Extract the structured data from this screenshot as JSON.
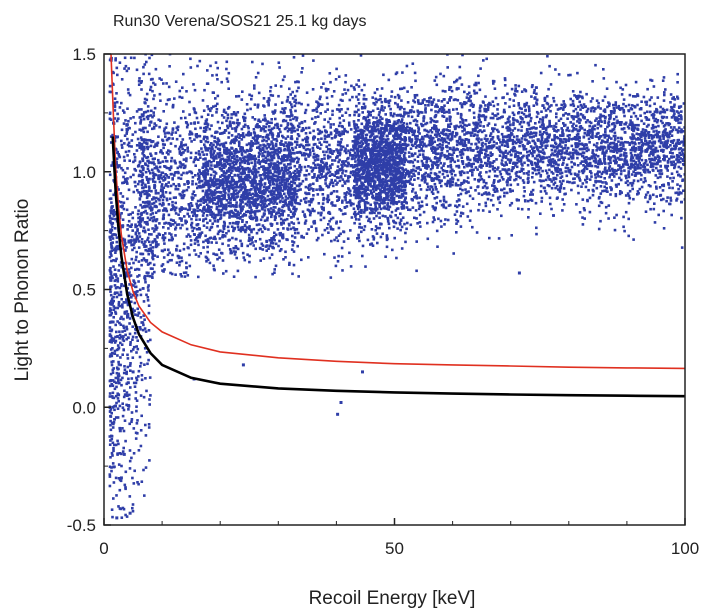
{
  "chart_data": {
    "type": "scatter",
    "title": "Run30 Verena/SOS21 25.1 kg days",
    "xlabel": "Recoil Energy [keV]",
    "ylabel": "Light to Phonon Ratio",
    "xlim": [
      0,
      100
    ],
    "ylim": [
      -0.5,
      1.5
    ],
    "x_ticks": [
      0,
      50,
      100
    ],
    "x_tick_labels": [
      "0",
      "50",
      "100"
    ],
    "y_ticks": [
      -0.5,
      0.0,
      0.5,
      1.0,
      1.5
    ],
    "y_tick_labels": [
      "-0.5",
      "0.0",
      "0.5",
      "1.0",
      "1.5"
    ],
    "grid": false,
    "legend": "none",
    "series": [
      {
        "kind": "points",
        "color": "#2f3ea8",
        "description_of_distribution": "dense band of events near light ratio 1.0 across 0-100 keV, widening toward low energy; low-energy tail descending below 0",
        "points": [
          {
            "x": 71.5,
            "y": 0.57
          },
          {
            "x": 40.2,
            "y": -0.03
          },
          {
            "x": 40.8,
            "y": 0.02
          },
          {
            "x": 44.5,
            "y": 0.15
          },
          {
            "x": 24.0,
            "y": 0.18
          },
          {
            "x": 15.5,
            "y": 0.12
          },
          {
            "x": 2.2,
            "y": -0.47
          },
          {
            "x": 4.5,
            "y": -0.45
          },
          {
            "x": 3.0,
            "y": -0.3
          },
          {
            "x": 3.5,
            "y": -0.2
          },
          {
            "x": 2.8,
            "y": -0.1
          },
          {
            "x": 4.0,
            "y": 0.05
          },
          {
            "x": 5.0,
            "y": 0.15
          },
          {
            "x": 3.3,
            "y": 0.3
          },
          {
            "x": 6.0,
            "y": 0.4
          },
          {
            "x": 7.0,
            "y": 0.55
          },
          {
            "x": 9.0,
            "y": 0.7
          },
          {
            "x": 12.0,
            "y": 0.85
          },
          {
            "x": 20.0,
            "y": 0.95
          },
          {
            "x": 30.0,
            "y": 1.0
          },
          {
            "x": 45.0,
            "y": 1.05
          },
          {
            "x": 60.0,
            "y": 1.05
          },
          {
            "x": 70.0,
            "y": 1.05
          },
          {
            "x": 85.0,
            "y": 1.1
          },
          {
            "x": 95.0,
            "y": 1.1
          },
          {
            "x": 99.0,
            "y": 1.12
          }
        ]
      },
      {
        "kind": "curve",
        "color": "#e03020",
        "x": [
          1.2,
          1.6,
          2,
          2.5,
          3,
          4,
          5,
          6,
          8,
          10,
          15,
          20,
          30,
          40,
          50,
          60,
          70,
          80,
          90,
          100
        ],
        "y": [
          1.5,
          1.25,
          1.02,
          0.85,
          0.73,
          0.58,
          0.49,
          0.43,
          0.36,
          0.32,
          0.265,
          0.235,
          0.21,
          0.195,
          0.185,
          0.18,
          0.175,
          0.17,
          0.167,
          0.165
        ]
      },
      {
        "kind": "curve",
        "color": "#000000",
        "x": [
          1.5,
          2,
          2.5,
          3,
          4,
          5,
          6,
          8,
          10,
          15,
          20,
          30,
          40,
          50,
          60,
          70,
          80,
          90,
          100
        ],
        "y": [
          1.15,
          0.92,
          0.76,
          0.64,
          0.48,
          0.38,
          0.31,
          0.23,
          0.18,
          0.125,
          0.1,
          0.08,
          0.07,
          0.063,
          0.058,
          0.054,
          0.051,
          0.049,
          0.047
        ]
      }
    ]
  }
}
